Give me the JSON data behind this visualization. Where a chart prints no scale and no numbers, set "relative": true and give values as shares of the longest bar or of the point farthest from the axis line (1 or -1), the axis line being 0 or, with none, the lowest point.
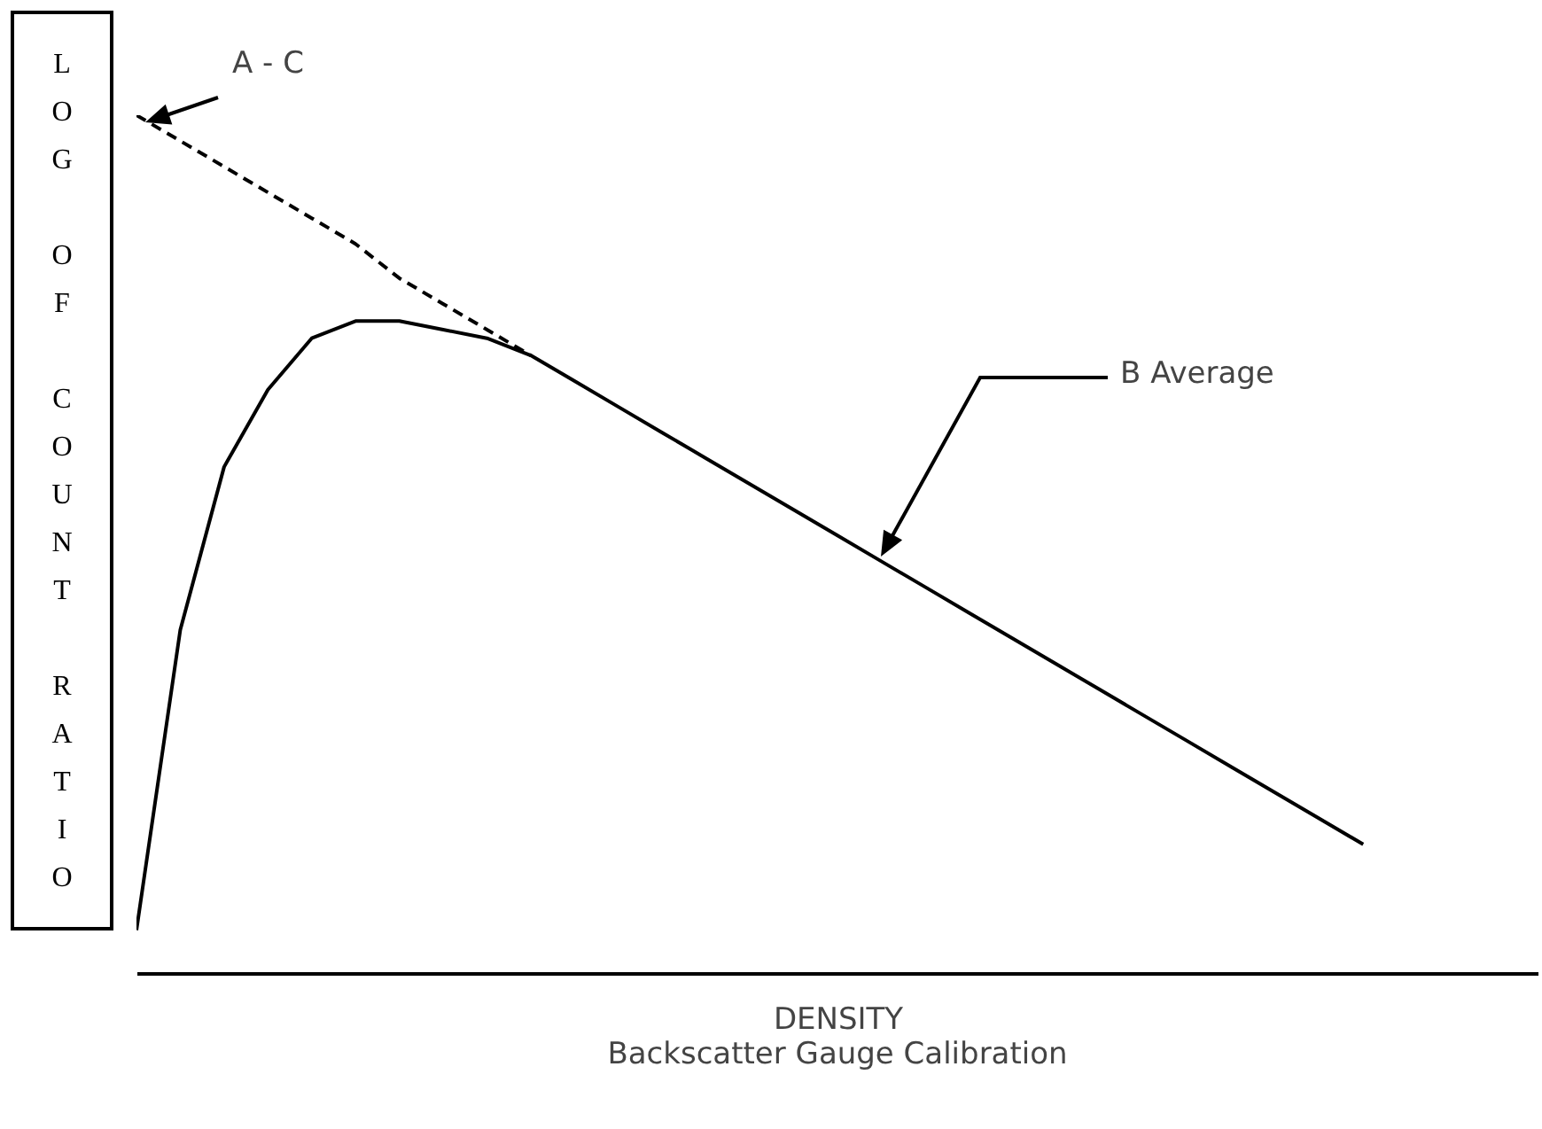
{
  "chart_data": {
    "type": "line",
    "relative": true,
    "title": "Backscatter Gauge Calibration",
    "xlabel": "DENSITY",
    "ylabel": "LOG OF COUNT RATIO",
    "annotations": [
      "A - C",
      "B Average"
    ],
    "categories": [
      null,
      null,
      null,
      null,
      null,
      null,
      null,
      null,
      null,
      null,
      null,
      null,
      null,
      null,
      null,
      null,
      null,
      null,
      null,
      null,
      null,
      null,
      null,
      null,
      null,
      null,
      null,
      null,
      null,
      null,
      null,
      null,
      null
    ],
    "series": [
      {
        "color": "#000000",
        "line_style": "solid",
        "values": [
          0.05,
          0.4,
          0.59,
          0.68,
          0.74,
          0.76,
          0.76,
          0.75,
          0.74,
          0.72,
          0.69,
          0.66,
          0.63,
          0.6,
          0.57,
          0.54,
          0.51,
          0.48,
          0.45,
          0.42,
          0.39,
          0.36,
          0.33,
          0.3,
          0.27,
          0.24,
          0.21,
          0.18,
          0.15,
          null,
          null,
          null,
          null
        ]
      },
      {
        "color": "#000000",
        "line_style": "dashed",
        "values": [
          1.0,
          0.97,
          0.94,
          0.91,
          0.88,
          0.85,
          0.81,
          0.78,
          0.75,
          0.72,
          null,
          null,
          null,
          null,
          null,
          null,
          null,
          null,
          null,
          null,
          null,
          null,
          null,
          null,
          null,
          null,
          null,
          null,
          null,
          null,
          null,
          null,
          null
        ]
      }
    ]
  }
}
